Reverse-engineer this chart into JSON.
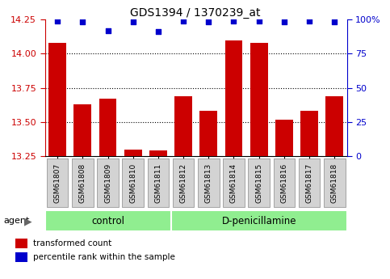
{
  "title": "GDS1394 / 1370239_at",
  "samples": [
    "GSM61807",
    "GSM61808",
    "GSM61809",
    "GSM61810",
    "GSM61811",
    "GSM61812",
    "GSM61813",
    "GSM61814",
    "GSM61815",
    "GSM61816",
    "GSM61817",
    "GSM61818"
  ],
  "red_values": [
    14.08,
    13.63,
    13.67,
    13.3,
    13.29,
    13.69,
    13.58,
    14.1,
    14.08,
    13.52,
    13.58,
    13.69
  ],
  "blue_values": [
    99.0,
    98.5,
    92.0,
    98.5,
    91.0,
    99.0,
    98.5,
    99.0,
    99.0,
    98.5,
    99.0,
    98.5
  ],
  "ylim_left": [
    13.25,
    14.25
  ],
  "ylim_right": [
    0,
    100
  ],
  "yticks_left": [
    13.25,
    13.5,
    13.75,
    14.0,
    14.25
  ],
  "yticks_right": [
    0,
    25,
    50,
    75,
    100
  ],
  "grid_lines": [
    14.0,
    13.75,
    13.5
  ],
  "bar_color": "#cc0000",
  "dot_color": "#0000cc",
  "n_control": 5,
  "control_label": "control",
  "treatment_label": "D-penicillamine",
  "agent_label": "agent",
  "legend_red": "transformed count",
  "legend_blue": "percentile rank within the sample",
  "bar_width": 0.7,
  "baseline": 13.25,
  "group_box_color": "#90ee90",
  "tick_color_left": "#cc0000",
  "tick_color_right": "#0000cc",
  "xlabel_bg_color": "#d3d3d3",
  "xlabel_edge_color": "#888888"
}
